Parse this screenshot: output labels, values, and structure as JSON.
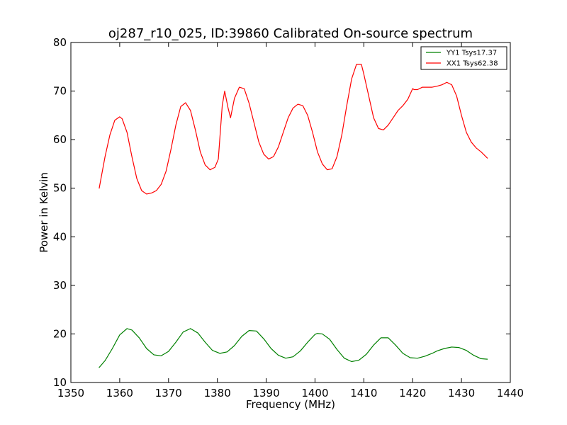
{
  "chart_data": {
    "type": "line",
    "title": "oj287_r10_025, ID:39860 Calibrated On-source spectrum",
    "xlabel": "Frequency (MHz)",
    "ylabel": "Power in Kelvin",
    "xlim": [
      1350,
      1440
    ],
    "ylim": [
      10,
      80
    ],
    "xticks": [
      1350,
      1360,
      1370,
      1380,
      1390,
      1400,
      1410,
      1420,
      1430,
      1440
    ],
    "yticks": [
      10,
      20,
      30,
      40,
      50,
      60,
      70,
      80
    ],
    "grid": false,
    "legend_position": "top-right",
    "series": [
      {
        "name": "YY1 Tsys17.37",
        "color": "#008000",
        "x": [
          1355.8,
          1357.0,
          1358.5,
          1360.0,
          1361.5,
          1362.5,
          1364.0,
          1365.5,
          1367.0,
          1368.5,
          1370.0,
          1371.5,
          1373.0,
          1374.5,
          1376.0,
          1377.5,
          1379.0,
          1380.5,
          1382.0,
          1383.5,
          1385.0,
          1386.5,
          1388.0,
          1389.5,
          1391.0,
          1392.5,
          1394.0,
          1395.5,
          1397.0,
          1398.5,
          1400.0,
          1400.5,
          1401.5,
          1403.0,
          1404.5,
          1406.0,
          1407.5,
          1409.0,
          1410.5,
          1412.0,
          1413.5,
          1415.0,
          1416.5,
          1418.0,
          1419.5,
          1421.0,
          1422.5,
          1424.0,
          1425.0,
          1426.5,
          1428.0,
          1429.5,
          1431.0,
          1432.5,
          1434.0,
          1435.3
        ],
        "y": [
          13.1,
          14.5,
          17.0,
          19.8,
          21.1,
          20.8,
          19.2,
          17.0,
          15.7,
          15.5,
          16.4,
          18.3,
          20.4,
          21.1,
          20.2,
          18.3,
          16.6,
          16.0,
          16.3,
          17.6,
          19.5,
          20.7,
          20.6,
          19.0,
          17.0,
          15.6,
          15.0,
          15.3,
          16.5,
          18.3,
          19.9,
          20.1,
          20.0,
          18.9,
          16.8,
          15.0,
          14.3,
          14.6,
          15.8,
          17.7,
          19.2,
          19.2,
          17.7,
          16.0,
          15.1,
          15.0,
          15.4,
          16.0,
          16.5,
          17.0,
          17.3,
          17.2,
          16.6,
          15.6,
          14.9,
          14.8
        ]
      },
      {
        "name": "XX1 Tsys62.38",
        "color": "#ff0000",
        "x": [
          1355.8,
          1357.0,
          1358.0,
          1359.0,
          1360.0,
          1360.5,
          1361.5,
          1362.5,
          1363.5,
          1364.5,
          1365.5,
          1366.5,
          1367.5,
          1368.5,
          1369.5,
          1370.5,
          1371.5,
          1372.5,
          1373.5,
          1374.5,
          1375.5,
          1376.5,
          1377.5,
          1378.5,
          1379.5,
          1380.2,
          1381.0,
          1381.5,
          1382.2,
          1382.7,
          1383.5,
          1384.5,
          1385.5,
          1386.5,
          1387.5,
          1388.5,
          1389.5,
          1390.5,
          1391.5,
          1392.5,
          1393.5,
          1394.5,
          1395.5,
          1396.5,
          1397.5,
          1398.5,
          1399.5,
          1400.5,
          1401.5,
          1402.5,
          1403.5,
          1404.5,
          1405.5,
          1406.5,
          1407.5,
          1408.5,
          1409.5,
          1410.0,
          1411.0,
          1412.0,
          1413.0,
          1414.0,
          1415.0,
          1416.0,
          1417.0,
          1418.0,
          1419.0,
          1420.0,
          1420.3,
          1421.0,
          1422.0,
          1423.0,
          1424.0,
          1425.0,
          1426.0,
          1427.0,
          1428.0,
          1429.0,
          1430.0,
          1431.0,
          1432.0,
          1433.0,
          1434.0,
          1435.3
        ],
        "y": [
          50.0,
          56.5,
          61.0,
          64.0,
          64.7,
          64.3,
          61.5,
          56.5,
          52.0,
          49.5,
          48.8,
          49.0,
          49.5,
          50.8,
          53.5,
          58.0,
          63.0,
          66.8,
          67.6,
          66.0,
          62.0,
          57.5,
          54.8,
          53.8,
          54.3,
          56.0,
          67.0,
          70.0,
          66.5,
          64.5,
          68.5,
          70.8,
          70.5,
          67.5,
          63.5,
          59.5,
          57.0,
          56.0,
          56.5,
          58.5,
          61.5,
          64.5,
          66.5,
          67.3,
          67.0,
          65.0,
          61.5,
          57.5,
          55.0,
          53.8,
          54.0,
          56.5,
          61.0,
          67.0,
          72.5,
          75.5,
          75.5,
          73.5,
          69.0,
          64.5,
          62.3,
          62.0,
          63.0,
          64.5,
          66.0,
          67.0,
          68.3,
          70.5,
          70.3,
          70.3,
          70.8,
          70.8,
          70.8,
          71.0,
          71.3,
          71.8,
          71.3,
          69.0,
          65.0,
          61.5,
          59.5,
          58.3,
          57.5,
          56.2
        ]
      }
    ]
  }
}
